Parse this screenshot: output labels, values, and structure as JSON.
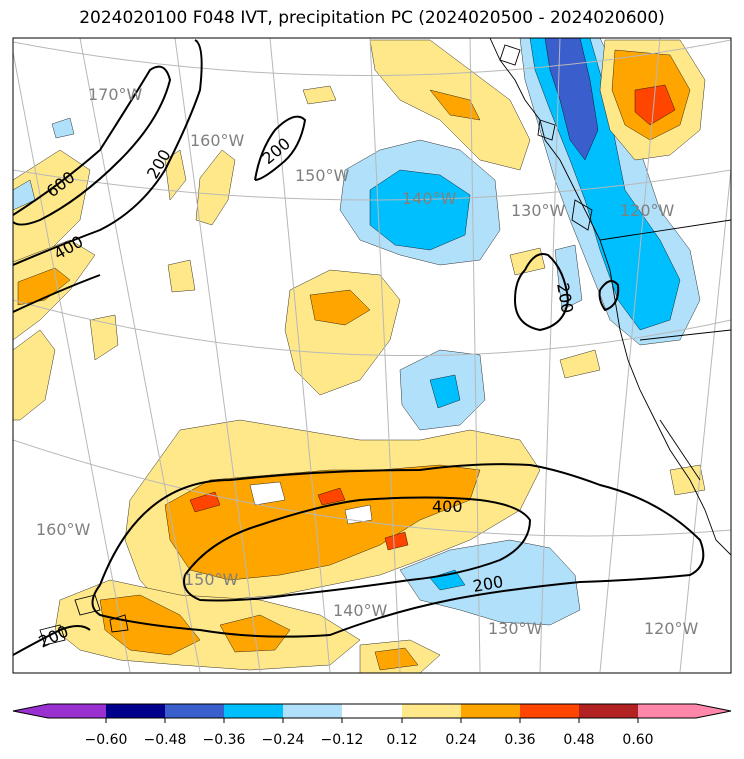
{
  "title": "2024020100 F048 IVT, precipitation PC (2024020500 - 2024020600)",
  "colors": {
    "c_060_neg": "#9b30d0",
    "c_048_neg": "#00008b",
    "c_036_neg": "#3a5fcd",
    "c_024_neg": "#00bfff",
    "c_012_neg": "#b0e0fa",
    "c_neutral": "#ffffff",
    "c_012_pos": "#ffe88a",
    "c_024_pos": "#ffa500",
    "c_036_pos": "#ff4500",
    "c_048_pos": "#b22222",
    "c_060_pos": "#ff88aa",
    "gridline": "#b8b8b8",
    "contour": "#000000"
  },
  "colorbar": {
    "ticks": [
      "−0.60",
      "−0.48",
      "−0.36",
      "−0.24",
      "−0.12",
      "0.12",
      "0.24",
      "0.36",
      "0.48",
      "0.60"
    ]
  },
  "longitude_labels": {
    "upper_170": "170°W",
    "upper_160": "160°W",
    "upper_150": "150°W",
    "upper_140": "140°W",
    "upper_130": "130°W",
    "upper_120": "120°W",
    "lower_160": "160°W",
    "lower_150": "150°W",
    "lower_140": "140°W",
    "lower_130": "130°W",
    "lower_120": "120°W"
  },
  "contour_labels": {
    "c600": "600",
    "c400_left": "400",
    "c200_topleft": "200",
    "c200_top": "200",
    "c200_coast": "200",
    "c400_south": "400",
    "c200_south": "200",
    "c200_bottomleft": "200"
  }
}
